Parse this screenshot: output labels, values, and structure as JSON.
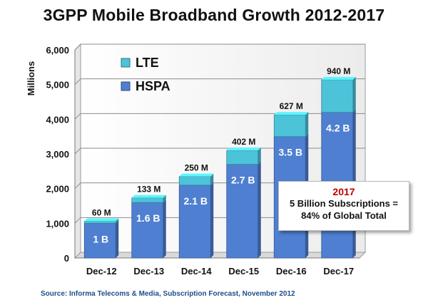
{
  "chart_data": {
    "type": "bar",
    "stacked": true,
    "title": "3GPP Mobile Broadband Growth 2012-2017",
    "xlabel": "",
    "ylabel": "Millions",
    "ylim": [
      0,
      6000
    ],
    "yticks": [
      0,
      1000,
      2000,
      3000,
      4000,
      5000,
      6000
    ],
    "ytick_labels": [
      "0",
      "1,000",
      "2,000",
      "3,000",
      "4,000",
      "5,000",
      "6,000"
    ],
    "grid": true,
    "legend_position": "top-left",
    "categories": [
      "Dec-12",
      "Dec-13",
      "Dec-14",
      "Dec-15",
      "Dec-16",
      "Dec-17"
    ],
    "series": [
      {
        "name": "HSPA",
        "color": "#4f7fd0",
        "values": [
          1000,
          1600,
          2100,
          2700,
          3500,
          4200
        ],
        "labels": [
          "1 B",
          "1.6 B",
          "2.1 B",
          "2.7 B",
          "3.5 B",
          "4.2 B"
        ]
      },
      {
        "name": "LTE",
        "color": "#4cc3d9",
        "values": [
          60,
          133,
          250,
          402,
          627,
          940
        ],
        "labels": [
          "60 M",
          "133 M",
          "250 M",
          "402 M",
          "627 M",
          "940 M"
        ]
      }
    ],
    "annotation": {
      "year": "2017",
      "line1": "5 Billion Subscriptions =",
      "line2": "84% of Global Total"
    },
    "source": "Source: Informa Telecoms & Media, Subscription Forecast, November 2012"
  }
}
